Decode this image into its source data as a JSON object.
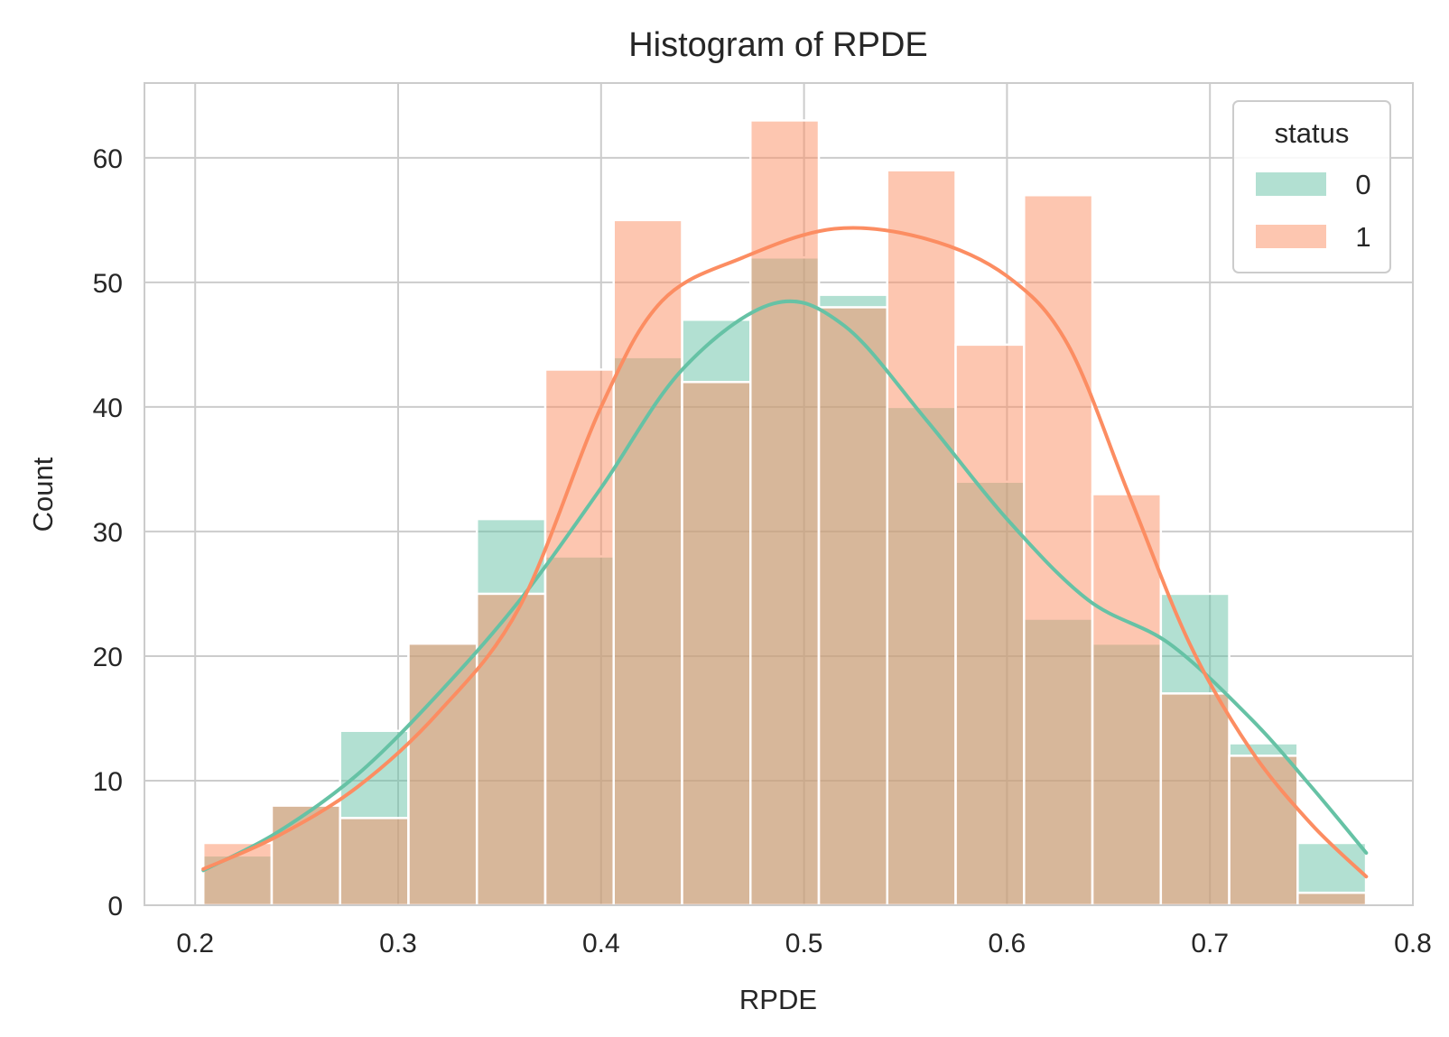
{
  "chart_data": {
    "type": "histogram",
    "title": "Histogram of RPDE",
    "xlabel": "RPDE",
    "ylabel": "Count",
    "xlim": [
      0.175,
      0.8
    ],
    "ylim": [
      0,
      66
    ],
    "x_ticks": [
      0.2,
      0.3,
      0.4,
      0.5,
      0.6,
      0.7,
      0.8
    ],
    "x_tick_labels": [
      "0.2",
      "0.3",
      "0.4",
      "0.5",
      "0.6",
      "0.7",
      "0.8"
    ],
    "y_ticks": [
      0,
      10,
      20,
      30,
      40,
      50,
      60
    ],
    "y_tick_labels": [
      "0",
      "10",
      "20",
      "30",
      "40",
      "50",
      "60"
    ],
    "grid": true,
    "legend": {
      "title": "status",
      "placement": "top-right"
    },
    "bins": [
      0.204,
      0.2377,
      0.2714,
      0.3051,
      0.3388,
      0.3725,
      0.4062,
      0.4399,
      0.4736,
      0.5073,
      0.541,
      0.5747,
      0.6084,
      0.6421,
      0.6758,
      0.7095,
      0.7432,
      0.7769
    ],
    "series": [
      {
        "name": "0",
        "color": "#66c2a5",
        "values": [
          4,
          8,
          14,
          21,
          31,
          28,
          44,
          47,
          52,
          49,
          40,
          34,
          23,
          21,
          25,
          13,
          5
        ],
        "kde": [
          [
            0.204,
            2.8
          ],
          [
            0.24,
            5.8
          ],
          [
            0.28,
            10.5
          ],
          [
            0.32,
            17.0
          ],
          [
            0.36,
            24.5
          ],
          [
            0.4,
            33.5
          ],
          [
            0.44,
            43.0
          ],
          [
            0.485,
            48.3
          ],
          [
            0.52,
            46.5
          ],
          [
            0.56,
            39.0
          ],
          [
            0.6,
            31.0
          ],
          [
            0.64,
            24.5
          ],
          [
            0.68,
            21.0
          ],
          [
            0.72,
            15.0
          ],
          [
            0.75,
            9.5
          ],
          [
            0.777,
            4.2
          ]
        ]
      },
      {
        "name": "1",
        "color": "#fc8d62",
        "values": [
          5,
          8,
          7,
          21,
          25,
          43,
          55,
          42,
          63,
          48,
          59,
          45,
          57,
          33,
          17,
          12,
          1
        ],
        "kde": [
          [
            0.204,
            2.9
          ],
          [
            0.24,
            5.5
          ],
          [
            0.28,
            9.5
          ],
          [
            0.32,
            15.5
          ],
          [
            0.36,
            24.0
          ],
          [
            0.4,
            40.0
          ],
          [
            0.43,
            48.5
          ],
          [
            0.47,
            52.0
          ],
          [
            0.515,
            54.3
          ],
          [
            0.56,
            53.5
          ],
          [
            0.6,
            50.5
          ],
          [
            0.63,
            45.0
          ],
          [
            0.66,
            33.0
          ],
          [
            0.69,
            21.0
          ],
          [
            0.72,
            12.5
          ],
          [
            0.75,
            6.5
          ],
          [
            0.777,
            2.3
          ]
        ]
      }
    ]
  }
}
